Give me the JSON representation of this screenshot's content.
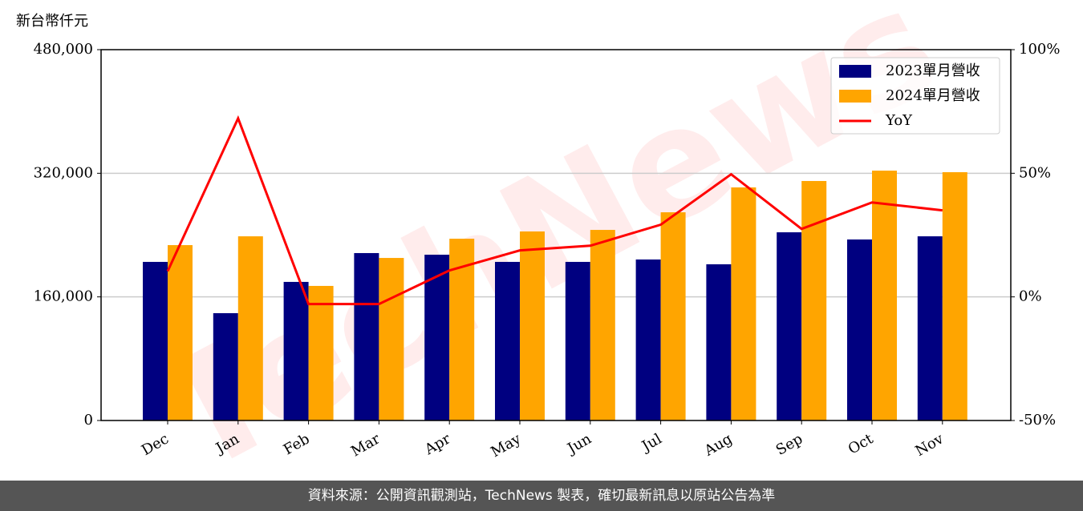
{
  "chart_data": {
    "type": "bar_line",
    "ylabel": "新台幣仟元",
    "watermark": "TechNews",
    "footer": "資料來源：公開資訊觀測站，TechNews 製表，確切最新訊息以原站公告為準",
    "categories": [
      "Dec",
      "Jan",
      "Feb",
      "Mar",
      "Apr",
      "May",
      "Jun",
      "Jul",
      "Aug",
      "Sep",
      "Oct",
      "Nov"
    ],
    "series": [
      {
        "name": "2023單月營收",
        "type": "bar",
        "color": "#000080",
        "values": [
          205300,
          138900,
          179400,
          216700,
          214600,
          205300,
          205300,
          208400,
          202200,
          243600,
          234300,
          238400
        ]
      },
      {
        "name": "2024單月營收",
        "type": "bar",
        "color": "#ffa500",
        "values": [
          227000,
          238400,
          174200,
          210400,
          235300,
          244700,
          246700,
          269500,
          301700,
          310000,
          323400,
          321400
        ]
      },
      {
        "name": "YoY",
        "type": "line",
        "axis": "y2",
        "color": "#ff0000",
        "values": [
          10.4,
          72.2,
          -2.9,
          -2.9,
          10.7,
          18.8,
          20.7,
          29.2,
          49.6,
          27.5,
          38.2,
          35.0
        ]
      }
    ],
    "ylim": [
      0,
      480000
    ],
    "yticks": [
      0,
      {
        "value": 160000,
        "label": "160,000"
      },
      {
        "value": 320000,
        "label": "320,000"
      },
      {
        "value": 480000,
        "label": "480,000"
      }
    ],
    "y2lim": [
      -50,
      100
    ],
    "y2ticks": [
      {
        "value": -50,
        "label": "-50%"
      },
      {
        "value": 0,
        "label": "0%"
      },
      {
        "value": 50,
        "label": "50%"
      },
      {
        "value": 100,
        "label": "100%"
      }
    ],
    "grid": true,
    "legend": "upper right"
  }
}
